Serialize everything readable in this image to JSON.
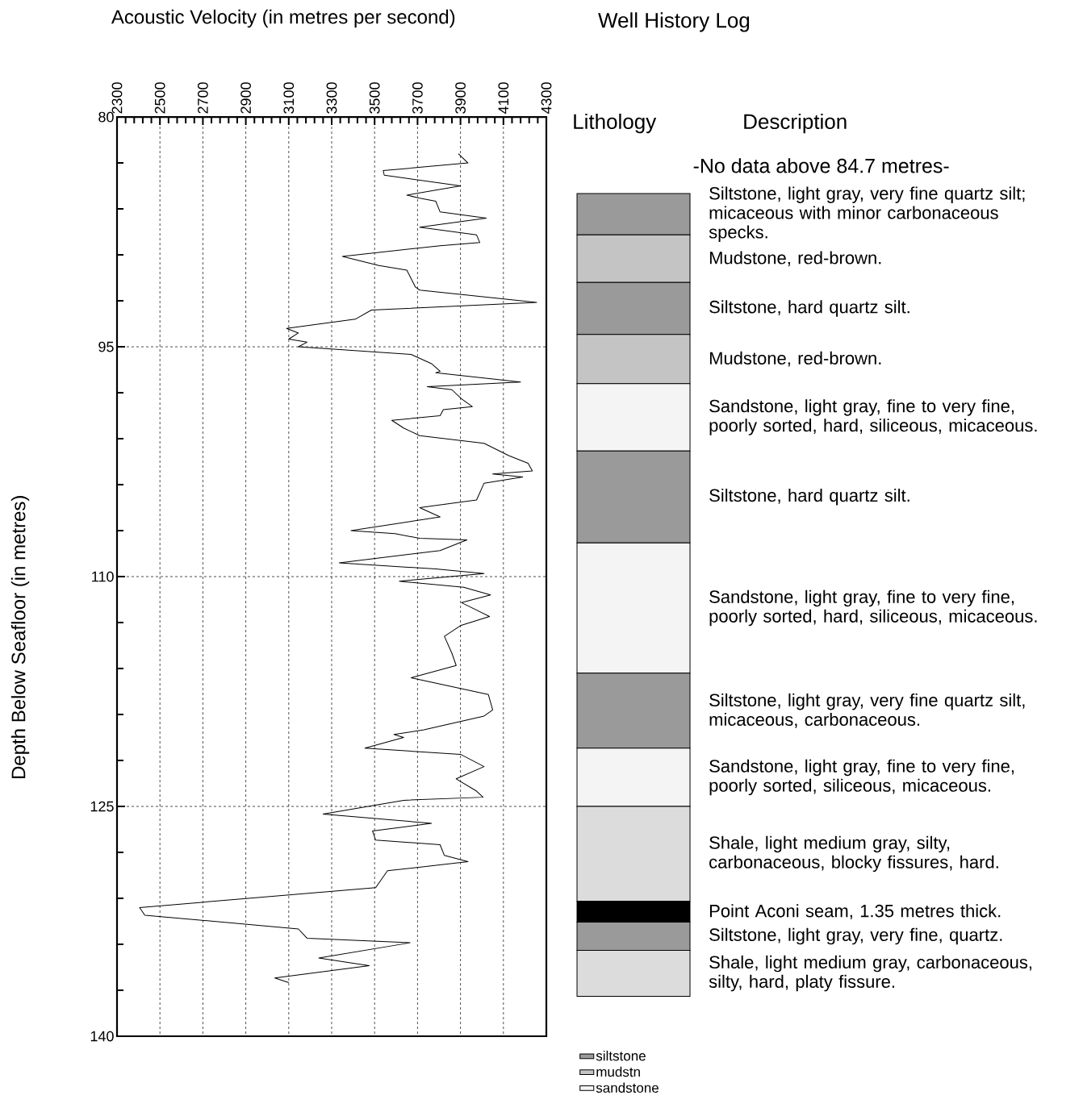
{
  "chart_data": [
    {
      "type": "line",
      "xlabel": "Acoustic Velocity (in metres per second)",
      "ylabel": "Depth Below Seafloor (in metres)",
      "xlim": [
        2300,
        4300
      ],
      "xticks": [
        2300,
        2500,
        2700,
        2900,
        3100,
        3300,
        3500,
        3700,
        3900,
        4100,
        4300
      ],
      "ylim": [
        140,
        80
      ],
      "yticks": [
        80,
        95,
        110,
        125,
        140
      ],
      "grid": true,
      "color": "#000000",
      "x": [
        3890,
        3935,
        3540,
        3545,
        3900,
        3650,
        3710,
        3785,
        3805,
        4020,
        3710,
        3975,
        3990,
        3805,
        3350,
        3520,
        3650,
        3690,
        3710,
        4255,
        3485,
        3410,
        3090,
        3145,
        3100,
        3185,
        3145,
        3670,
        3765,
        3805,
        3785,
        4180,
        3745,
        3860,
        3905,
        3955,
        3820,
        3805,
        3580,
        3635,
        3710,
        4010,
        4125,
        4215,
        4235,
        4050,
        4190,
        4010,
        3975,
        3710,
        3805,
        3390,
        3595,
        3710,
        3930,
        3805,
        3335,
        3785,
        4010,
        3615,
        3915,
        4040,
        3905,
        4035,
        3900,
        3825,
        3860,
        3880,
        3670,
        4030,
        4050,
        4010,
        3730,
        3590,
        3635,
        3455,
        3900,
        4010,
        3880,
        3975,
        4005,
        3635,
        3260,
        3765,
        3490,
        3505,
        3805,
        3825,
        3935,
        3560,
        3505,
        2405,
        2430,
        3145,
        3185,
        3665,
        3240,
        3475,
        3035,
        3100
      ],
      "values": [
        82.4,
        83.0,
        83.5,
        83.8,
        84.5,
        85.1,
        85.3,
        85.5,
        86.2,
        86.6,
        87.2,
        87.7,
        88.2,
        88.4,
        89.1,
        89.7,
        90.0,
        91.1,
        91.3,
        92.1,
        92.6,
        93.2,
        93.8,
        94.1,
        94.5,
        94.7,
        95.0,
        95.5,
        96.1,
        96.6,
        96.7,
        97.3,
        97.6,
        97.8,
        98.4,
        98.9,
        99.1,
        99.5,
        99.8,
        100.3,
        100.8,
        101.3,
        102.1,
        102.6,
        103.1,
        103.3,
        103.5,
        103.9,
        105.0,
        105.5,
        106.1,
        107.0,
        107.2,
        107.5,
        107.6,
        108.3,
        109.1,
        109.5,
        109.8,
        110.3,
        110.7,
        111.2,
        111.7,
        112.6,
        113.2,
        113.9,
        115.0,
        115.8,
        116.6,
        117.7,
        118.7,
        119.1,
        120.0,
        120.3,
        120.5,
        121.2,
        121.6,
        122.4,
        123.2,
        124.0,
        124.4,
        124.6,
        125.5,
        126.1,
        126.6,
        127.2,
        127.5,
        128.2,
        128.6,
        129.2,
        130.3,
        131.6,
        132.1,
        133.0,
        133.6,
        133.9,
        134.9,
        135.4,
        136.2,
        136.5
      ]
    },
    {
      "type": "bar",
      "title": "Well History Log",
      "categories": [
        null
      ],
      "ylim": [
        140,
        80
      ],
      "tick_labels": false,
      "legend": "bottom",
      "series": [
        {
          "name": "siltstone",
          "color": "#9a9a9a",
          "base": [
            85.0
          ],
          "values": [
            2.7
          ]
        },
        {
          "name": "mudstn",
          "color": "#c4c4c4",
          "base": [
            87.7
          ],
          "values": [
            3.1
          ]
        },
        {
          "color": "#9a9a9a",
          "base": [
            90.8
          ],
          "values": [
            3.4
          ]
        },
        {
          "color": "#c4c4c4",
          "base": [
            94.2
          ],
          "values": [
            3.2
          ]
        },
        {
          "name": "sandstone",
          "color": "#f4f4f4",
          "base": [
            97.4
          ],
          "values": [
            4.4
          ]
        },
        {
          "color": "#9a9a9a",
          "base": [
            101.8
          ],
          "values": [
            6.0
          ]
        },
        {
          "color": "#f4f4f4",
          "base": [
            107.8
          ],
          "values": [
            8.5
          ]
        },
        {
          "color": "#9a9a9a",
          "base": [
            116.3
          ],
          "values": [
            4.9
          ]
        },
        {
          "color": "#f4f4f4",
          "base": [
            121.2
          ],
          "values": [
            3.8
          ]
        },
        {
          "color": "#dcdcdc",
          "base": [
            125.0
          ],
          "values": [
            6.2
          ]
        },
        {
          "color": "#000000",
          "base": [
            131.2
          ],
          "values": [
            1.35
          ]
        },
        {
          "color": "#9a9a9a",
          "base": [
            132.55
          ],
          "values": [
            1.85
          ]
        },
        {
          "color": "#dcdcdc",
          "base": [
            134.4
          ],
          "values": [
            3.0
          ]
        }
      ],
      "annotations": [
        "Lithology",
        "Description",
        "-No data above 84.7 metres-",
        "Siltstone, light gray, very fine quartz silt; micaceous with minor carbonaceous specks.",
        "Mudstone, red-brown.",
        "Siltstone, hard quartz silt.",
        "Mudstone, red-brown.",
        "Sandstone, light gray, fine to very fine, poorly sorted, hard, siliceous, micaceous.",
        "Siltstone, hard quartz silt.",
        "Sandstone, light gray, fine to very fine, poorly sorted, hard, siliceous, micaceous.",
        "Siltstone, light gray, very fine quartz silt, micaceous, carbonaceous.",
        "Sandstone, light gray, fine to very fine, poorly sorted, siliceous, micaceous.",
        "Shale, light medium gray, silty, carbonaceous, blocky fissures, hard.",
        "Point Aconi seam, 1.35 metres thick.",
        "Siltstone, light gray, very fine, quartz.",
        "Shale, light medium gray, carbonaceous, silty, hard, platy fissure."
      ]
    }
  ]
}
